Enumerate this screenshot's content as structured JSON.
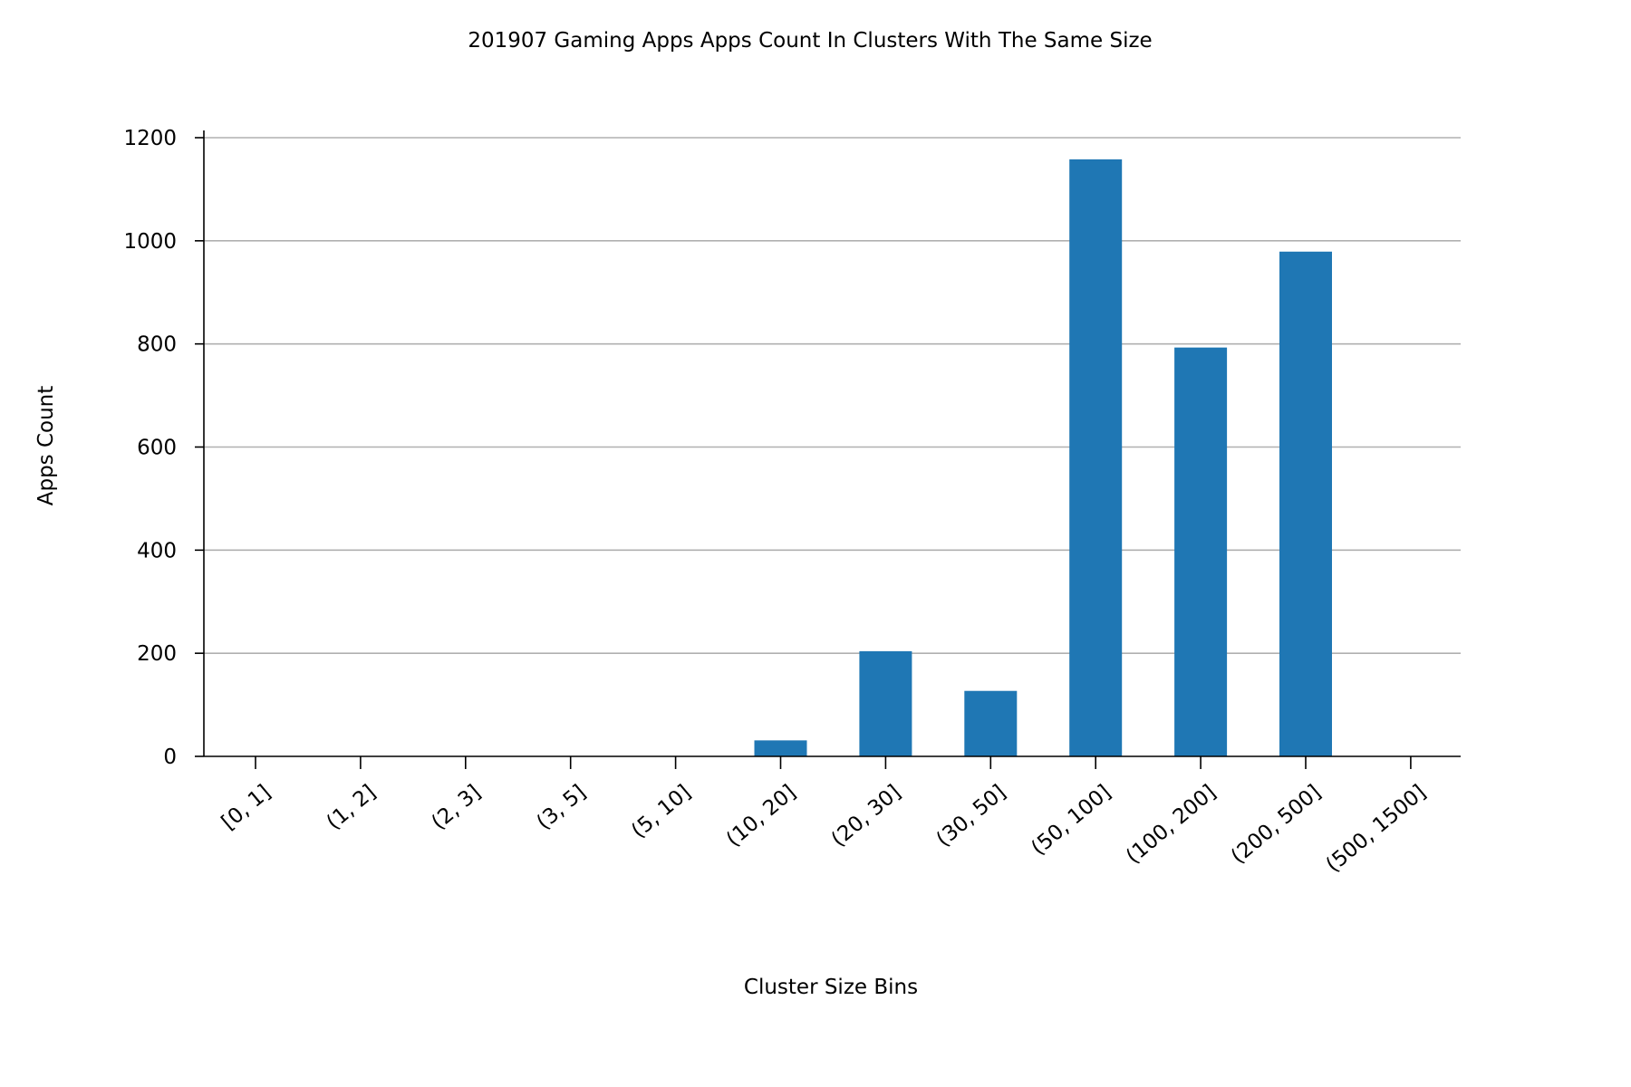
{
  "chart_data": {
    "type": "bar",
    "title": "201907 Gaming Apps Apps Count In Clusters With The Same Size",
    "xlabel": "Cluster Size Bins",
    "ylabel": "Apps Count",
    "categories": [
      "[0, 1]",
      "(1, 2]",
      "(2, 3]",
      "(3, 5]",
      "(5, 10]",
      "(10, 20]",
      "(20, 30]",
      "(30, 50]",
      "(50, 100]",
      "(100, 200]",
      "(200, 500]",
      "(500, 1500]"
    ],
    "values": [
      0,
      0,
      0,
      0,
      0,
      31,
      204,
      127,
      1158,
      793,
      979,
      0
    ],
    "ylim": [
      0,
      1200
    ],
    "yticks": [
      "0",
      "200",
      "400",
      "600",
      "800",
      "1000",
      "1200"
    ],
    "grid": "horizontal",
    "bar_color": "#1f77b4"
  }
}
